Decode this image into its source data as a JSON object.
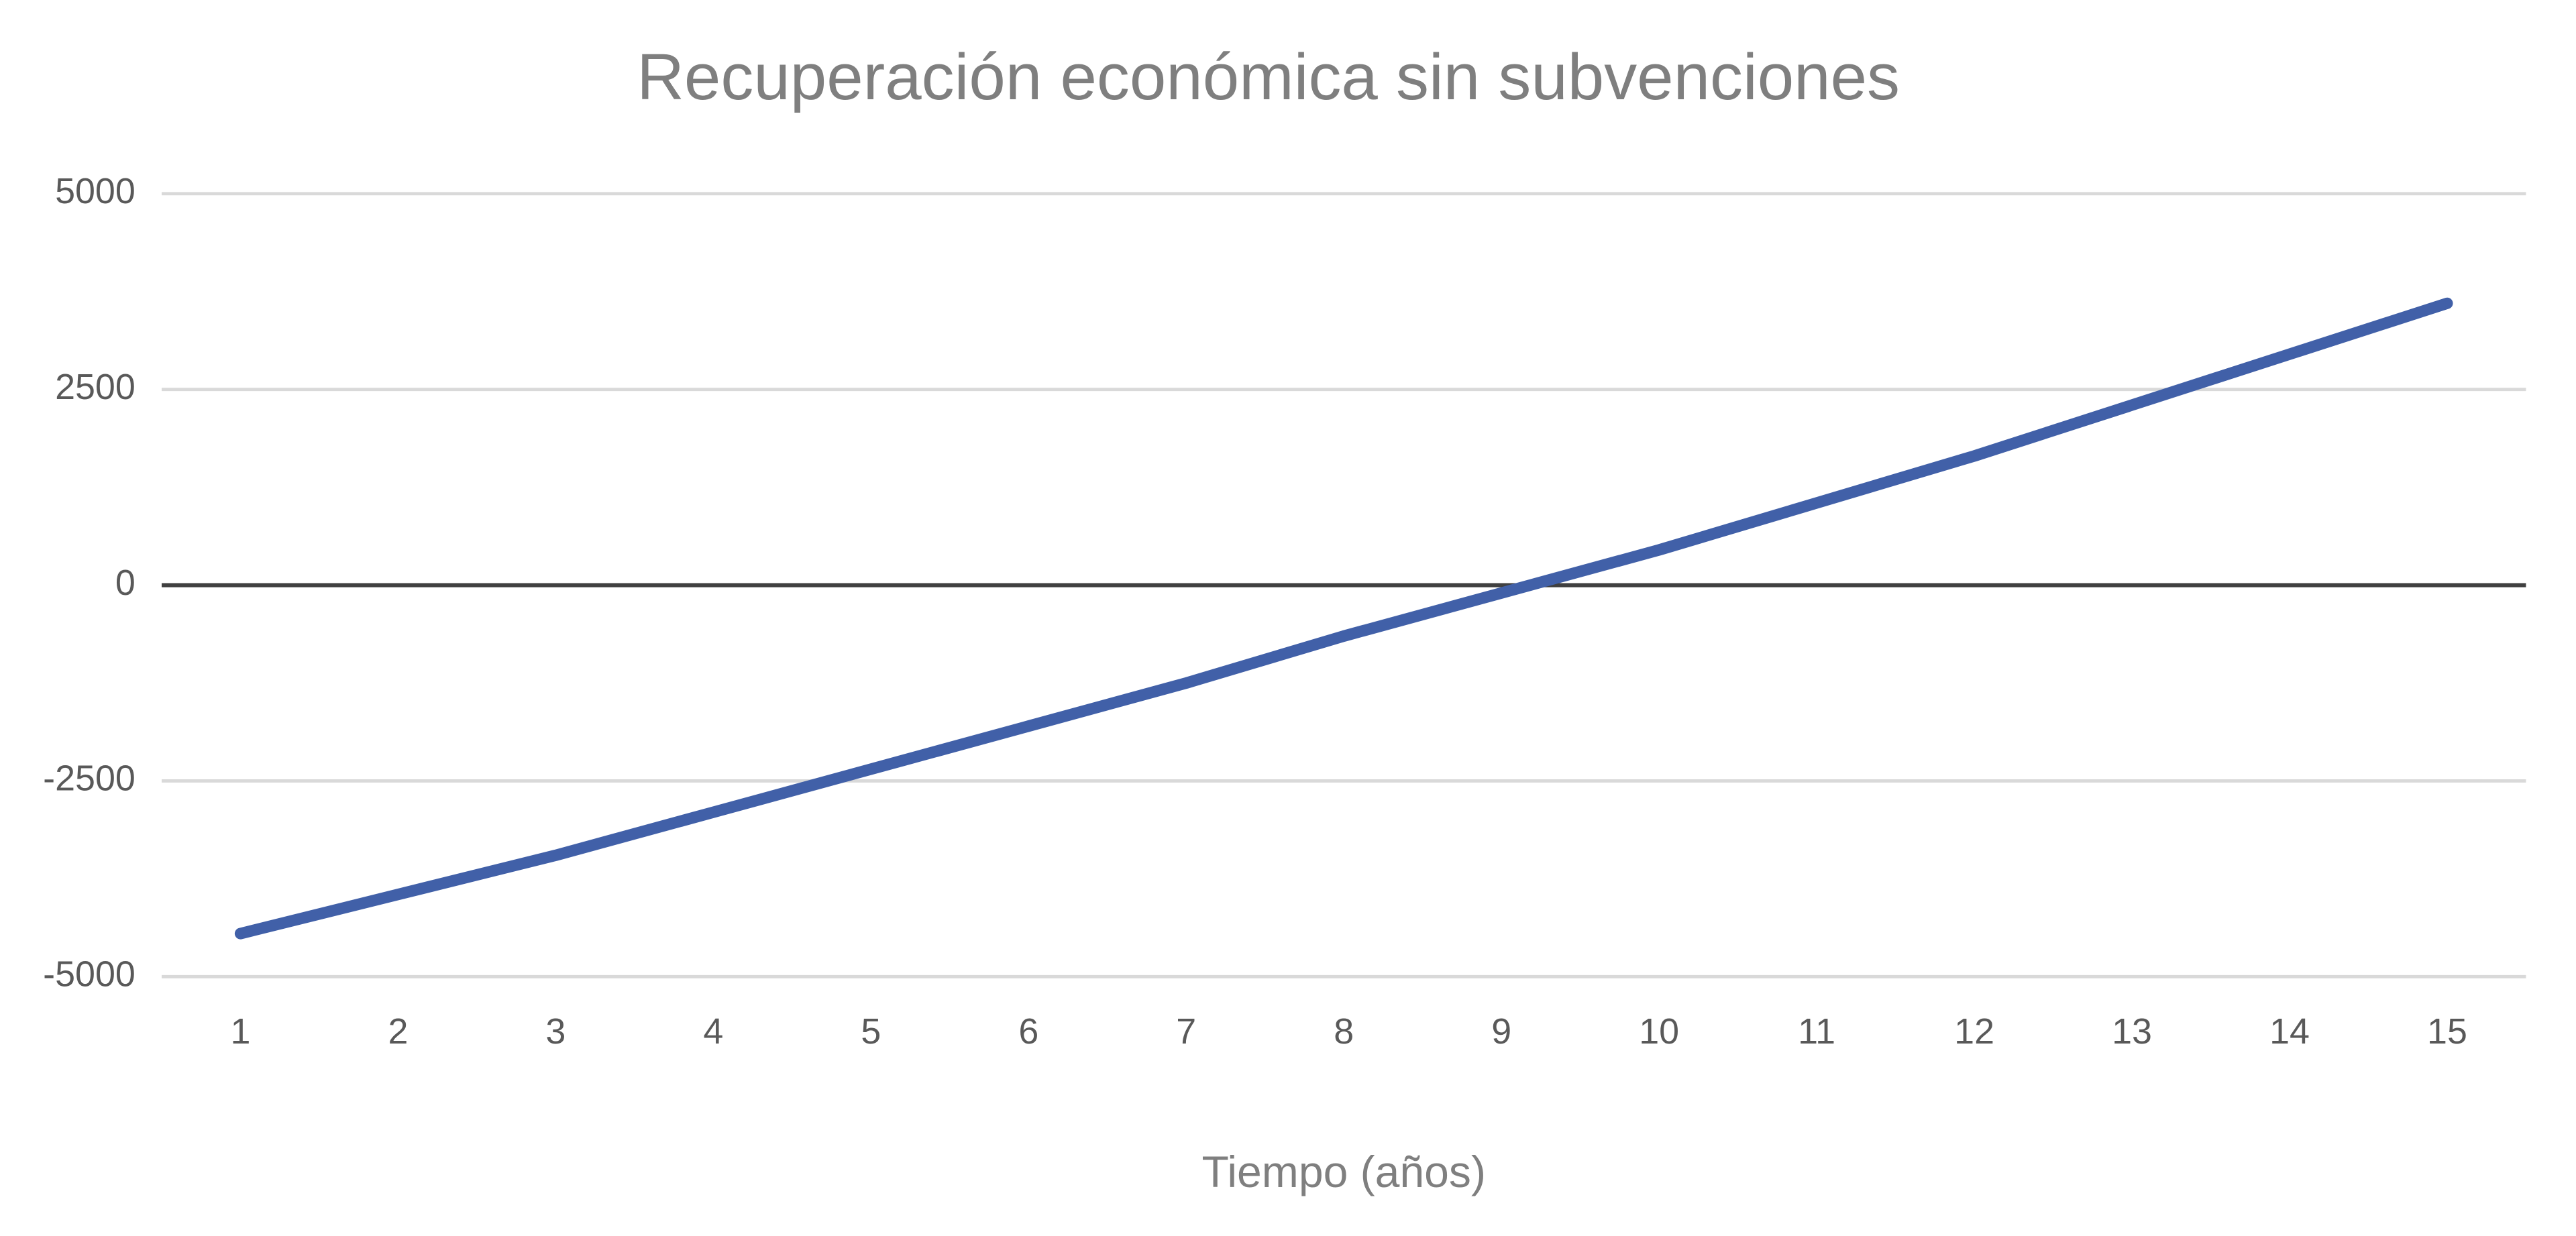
{
  "chart_data": {
    "type": "line",
    "title": "Recuperación económica sin subvenciones",
    "x_label": "Tiempo (años)",
    "categories": [
      "1",
      "2",
      "3",
      "4",
      "5",
      "6",
      "7",
      "8",
      "9",
      "10",
      "11",
      "12",
      "13",
      "14",
      "15"
    ],
    "values": [
      -4450,
      -3950,
      -3450,
      -2900,
      -2350,
      -1800,
      -1250,
      -650,
      -100,
      450,
      1050,
      1650,
      2300,
      2950,
      3600
    ],
    "color": "#4160a8",
    "ylim": [
      -5000,
      5000
    ],
    "yticks": [
      -5000,
      -2500,
      0,
      2500,
      5000
    ],
    "grid": true
  }
}
